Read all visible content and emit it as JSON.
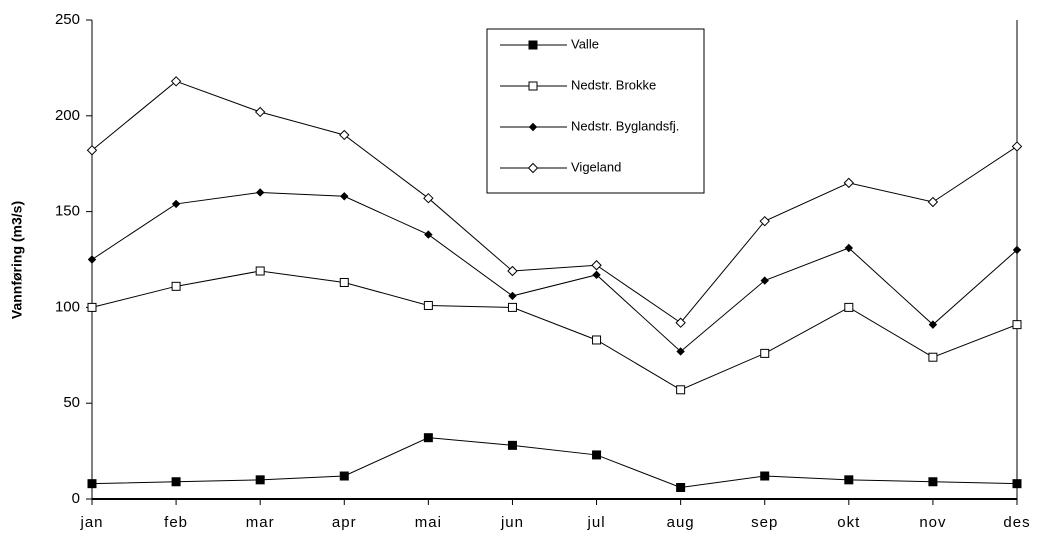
{
  "chart_data": {
    "type": "line",
    "y_label": "Vannføring (m3/s)",
    "categories": [
      "jan",
      "feb",
      "mar",
      "apr",
      "mai",
      "jun",
      "jul",
      "aug",
      "sep",
      "okt",
      "nov",
      "des"
    ],
    "series": [
      {
        "name": "Valle",
        "color": "#000000",
        "marker": "square-filled",
        "values": [
          8,
          9,
          10,
          12,
          32,
          28,
          23,
          6,
          12,
          10,
          9,
          8
        ]
      },
      {
        "name": "Nedstr. Brokke",
        "color": "#000000",
        "marker": "square-open",
        "values": [
          100,
          111,
          119,
          113,
          101,
          100,
          83,
          57,
          76,
          100,
          74,
          91
        ]
      },
      {
        "name": "Nedstr. Byglandsfj.",
        "color": "#000000",
        "marker": "diamond-filled",
        "values": [
          125,
          154,
          160,
          158,
          138,
          106,
          117,
          77,
          114,
          131,
          91,
          130
        ]
      },
      {
        "name": "Vigeland",
        "color": "#000000",
        "marker": "diamond-open",
        "values": [
          182,
          218,
          202,
          190,
          157,
          119,
          122,
          92,
          145,
          165,
          155,
          184
        ]
      }
    ],
    "ylim": [
      0,
      250
    ],
    "yticks": [
      0,
      50,
      100,
      150,
      200,
      250
    ],
    "grid": false,
    "legend": "top-center"
  }
}
